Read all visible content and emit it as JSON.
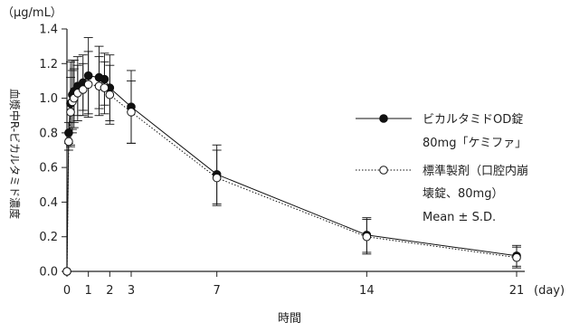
{
  "chart_data": {
    "type": "line",
    "title": "",
    "unit_label": "（μg/mL）",
    "ylabel": "血漿中R-ビカルタミド濃度",
    "xlabel": "時間",
    "x_unit": "(day)",
    "ylim": [
      0.0,
      1.4
    ],
    "xlim": [
      0,
      21
    ],
    "y_ticks": [
      "0.0",
      "0.2",
      "0.4",
      "0.6",
      "0.8",
      "1.0",
      "1.2",
      "1.4"
    ],
    "x_ticks": [
      "0",
      "1",
      "2",
      "3",
      "7",
      "14",
      "21"
    ],
    "legend_note": "Mean ± S.D.",
    "series": [
      {
        "name": "ビカルタミドOD錠 80mg「ケミファ」",
        "name_lines": [
          "ビカルタミドOD錠",
          "80mg「ケミファ」"
        ],
        "marker": "filled-circle",
        "line_style": "solid",
        "color": "#111111",
        "x": [
          0,
          0.08,
          0.17,
          0.25,
          0.33,
          0.5,
          0.75,
          1,
          1.5,
          1.75,
          2,
          3,
          7,
          14,
          21
        ],
        "y": [
          0.0,
          0.8,
          0.97,
          1.02,
          1.04,
          1.07,
          1.09,
          1.13,
          1.12,
          1.11,
          1.06,
          0.95,
          0.56,
          0.21,
          0.09
        ],
        "sd": [
          0.0,
          0.06,
          0.24,
          0.2,
          0.18,
          0.17,
          0.16,
          0.22,
          0.18,
          0.15,
          0.19,
          0.21,
          0.17,
          0.1,
          0.06
        ]
      },
      {
        "name": "標準製剤（口腔内崩壊錠、80mg）",
        "name_lines": [
          "標準製剤（口腔内崩",
          "壊錠、80mg）"
        ],
        "marker": "open-circle",
        "line_style": "dotted",
        "color": "#111111",
        "x": [
          0,
          0.08,
          0.17,
          0.25,
          0.33,
          0.5,
          0.75,
          1,
          1.5,
          1.75,
          2,
          3,
          7,
          14,
          21
        ],
        "y": [
          0.0,
          0.75,
          0.92,
          0.98,
          1.0,
          1.03,
          1.05,
          1.08,
          1.07,
          1.06,
          1.02,
          0.92,
          0.54,
          0.2,
          0.08
        ],
        "sd": [
          0.0,
          0.05,
          0.2,
          0.18,
          0.17,
          0.16,
          0.15,
          0.19,
          0.17,
          0.15,
          0.17,
          0.18,
          0.16,
          0.1,
          0.06
        ]
      }
    ],
    "grid": false,
    "legend_position": "right"
  }
}
